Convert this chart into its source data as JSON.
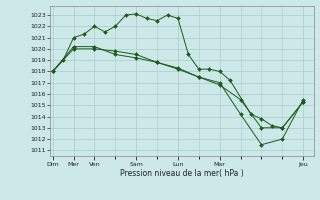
{
  "xlabel": "Pression niveau de la mer( hPa )",
  "background_color": "#cde8e8",
  "grid_color": "#aacccc",
  "line_color": "#1a5c1a",
  "ylim": [
    1010.5,
    1023.8
  ],
  "yticks": [
    1011,
    1012,
    1013,
    1014,
    1015,
    1016,
    1017,
    1018,
    1019,
    1020,
    1021,
    1022,
    1023
  ],
  "x_major_ticks": [
    0,
    1,
    2,
    4,
    6,
    8,
    12
  ],
  "x_major_labels": [
    "Dim",
    "Mer",
    "Ven",
    "Sam",
    "Lun",
    "Mar",
    "Jeu"
  ],
  "xlim": [
    -0.15,
    12.5
  ],
  "series1_x": [
    0,
    0.5,
    1.0,
    1.5,
    2.0,
    2.5,
    3.0,
    3.5,
    4.0,
    4.5,
    5.0,
    5.5,
    6.0,
    6.5,
    7.0,
    7.5,
    8.0,
    8.5,
    9.5,
    10.0,
    10.5,
    11.0,
    12.0
  ],
  "series1_y": [
    1018.0,
    1019.0,
    1021.0,
    1021.3,
    1022.0,
    1021.5,
    1022.0,
    1023.0,
    1023.1,
    1022.7,
    1022.5,
    1023.0,
    1022.7,
    1019.5,
    1018.2,
    1018.2,
    1018.0,
    1017.2,
    1014.2,
    1013.8,
    1013.2,
    1013.0,
    1015.3
  ],
  "series2_x": [
    0,
    1,
    2,
    3,
    4,
    5,
    6,
    7,
    8,
    9,
    10,
    11,
    12
  ],
  "series2_y": [
    1018.0,
    1020.2,
    1020.2,
    1019.5,
    1019.2,
    1018.8,
    1018.2,
    1017.5,
    1016.8,
    1015.5,
    1013.0,
    1013.0,
    1015.3
  ],
  "series3_x": [
    0,
    1,
    2,
    3,
    4,
    5,
    6,
    7,
    8,
    9,
    10,
    11,
    12
  ],
  "series3_y": [
    1018.0,
    1020.0,
    1020.0,
    1019.8,
    1019.5,
    1018.8,
    1018.3,
    1017.5,
    1017.0,
    1014.2,
    1011.5,
    1012.0,
    1015.5
  ]
}
